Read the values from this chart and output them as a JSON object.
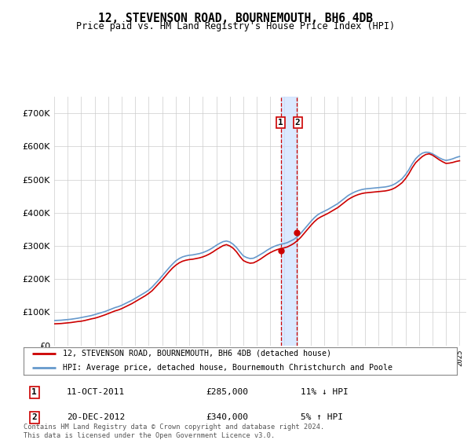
{
  "title": "12, STEVENSON ROAD, BOURNEMOUTH, BH6 4DB",
  "subtitle": "Price paid vs. HM Land Registry's House Price Index (HPI)",
  "legend_line1": "12, STEVENSON ROAD, BOURNEMOUTH, BH6 4DB (detached house)",
  "legend_line2": "HPI: Average price, detached house, Bournemouth Christchurch and Poole",
  "annotation1_date": "11-OCT-2011",
  "annotation1_price": "£285,000",
  "annotation1_hpi": "11% ↓ HPI",
  "annotation2_date": "20-DEC-2012",
  "annotation2_price": "£340,000",
  "annotation2_hpi": "5% ↑ HPI",
  "footer": "Contains HM Land Registry data © Crown copyright and database right 2024.\nThis data is licensed under the Open Government Licence v3.0.",
  "sale1_year": 2011.79,
  "sale2_year": 2012.97,
  "sale1_price": 285000,
  "sale2_price": 340000,
  "hpi_color": "#6699cc",
  "price_color": "#cc0000",
  "annotation_color": "#cc0000",
  "shade_color": "#cce0ff",
  "grid_color": "#cccccc",
  "background_color": "#ffffff",
  "ylim_max": 750000,
  "xlim_start": 1995,
  "xlim_end": 2025.5,
  "years_hpi": [
    1995,
    1995.25,
    1995.5,
    1995.75,
    1996,
    1996.25,
    1996.5,
    1996.75,
    1997,
    1997.25,
    1997.5,
    1997.75,
    1998,
    1998.25,
    1998.5,
    1998.75,
    1999,
    1999.25,
    1999.5,
    1999.75,
    2000,
    2000.25,
    2000.5,
    2000.75,
    2001,
    2001.25,
    2001.5,
    2001.75,
    2002,
    2002.25,
    2002.5,
    2002.75,
    2003,
    2003.25,
    2003.5,
    2003.75,
    2004,
    2004.25,
    2004.5,
    2004.75,
    2005,
    2005.25,
    2005.5,
    2005.75,
    2006,
    2006.25,
    2006.5,
    2006.75,
    2007,
    2007.25,
    2007.5,
    2007.75,
    2008,
    2008.25,
    2008.5,
    2008.75,
    2009,
    2009.25,
    2009.5,
    2009.75,
    2010,
    2010.25,
    2010.5,
    2010.75,
    2011,
    2011.25,
    2011.5,
    2011.75,
    2012,
    2012.25,
    2012.5,
    2012.75,
    2013,
    2013.25,
    2013.5,
    2013.75,
    2014,
    2014.25,
    2014.5,
    2014.75,
    2015,
    2015.25,
    2015.5,
    2015.75,
    2016,
    2016.25,
    2016.5,
    2016.75,
    2017,
    2017.25,
    2017.5,
    2017.75,
    2018,
    2018.25,
    2018.5,
    2018.75,
    2019,
    2019.25,
    2019.5,
    2019.75,
    2020,
    2020.25,
    2020.5,
    2020.75,
    2021,
    2021.25,
    2021.5,
    2021.75,
    2022,
    2022.25,
    2022.5,
    2022.75,
    2023,
    2023.25,
    2023.5,
    2023.75,
    2024,
    2024.25,
    2024.5,
    2024.75,
    2025
  ],
  "hpi_vals": [
    75000,
    75500,
    76000,
    77000,
    78000,
    79000,
    80500,
    82000,
    84000,
    86000,
    88000,
    90000,
    93000,
    96000,
    99000,
    102000,
    106000,
    110000,
    114000,
    117000,
    121000,
    126000,
    131000,
    136000,
    142000,
    148000,
    154000,
    160000,
    167000,
    176000,
    187000,
    198000,
    210000,
    222000,
    234000,
    245000,
    255000,
    262000,
    267000,
    270000,
    272000,
    273000,
    275000,
    277000,
    280000,
    284000,
    289000,
    295000,
    302000,
    308000,
    313000,
    315000,
    312000,
    305000,
    295000,
    282000,
    270000,
    265000,
    262000,
    263000,
    268000,
    274000,
    280000,
    287000,
    293000,
    298000,
    302000,
    305000,
    307000,
    310000,
    315000,
    320000,
    328000,
    338000,
    350000,
    362000,
    374000,
    385000,
    394000,
    400000,
    405000,
    410000,
    416000,
    422000,
    428000,
    436000,
    444000,
    452000,
    458000,
    463000,
    467000,
    470000,
    472000,
    473000,
    474000,
    475000,
    476000,
    477000,
    478000,
    480000,
    483000,
    488000,
    495000,
    503000,
    515000,
    530000,
    548000,
    563000,
    573000,
    580000,
    583000,
    582000,
    578000,
    572000,
    566000,
    561000,
    558000,
    560000,
    563000,
    567000,
    570000
  ],
  "price_vals": [
    65000,
    65500,
    66000,
    67000,
    68000,
    69000,
    70500,
    72000,
    73000,
    75000,
    77500,
    80000,
    82000,
    85000,
    88500,
    92000,
    96000,
    100000,
    104000,
    107000,
    111000,
    116000,
    121000,
    126000,
    132000,
    138000,
    144000,
    150000,
    157000,
    165000,
    176000,
    187000,
    198000,
    210000,
    222000,
    233000,
    242000,
    249000,
    254000,
    257000,
    259000,
    260000,
    262000,
    264000,
    267000,
    271000,
    276000,
    282000,
    289000,
    295000,
    301000,
    304000,
    300000,
    293000,
    282000,
    268000,
    256000,
    251000,
    248000,
    249000,
    254000,
    260000,
    267000,
    274000,
    280000,
    285000,
    289000,
    292000,
    294000,
    297000,
    302000,
    308000,
    316000,
    326000,
    338000,
    350000,
    362000,
    373000,
    382000,
    388000,
    393000,
    398000,
    404000,
    410000,
    416000,
    424000,
    432000,
    440000,
    446000,
    451000,
    455000,
    458000,
    460000,
    461000,
    462000,
    463000,
    464000,
    465000,
    466000,
    468000,
    471000,
    476000,
    483000,
    491000,
    503000,
    518000,
    536000,
    551000,
    561000,
    570000,
    576000,
    578000,
    574000,
    567000,
    560000,
    554000,
    549000,
    550000,
    552000,
    555000,
    557000
  ]
}
